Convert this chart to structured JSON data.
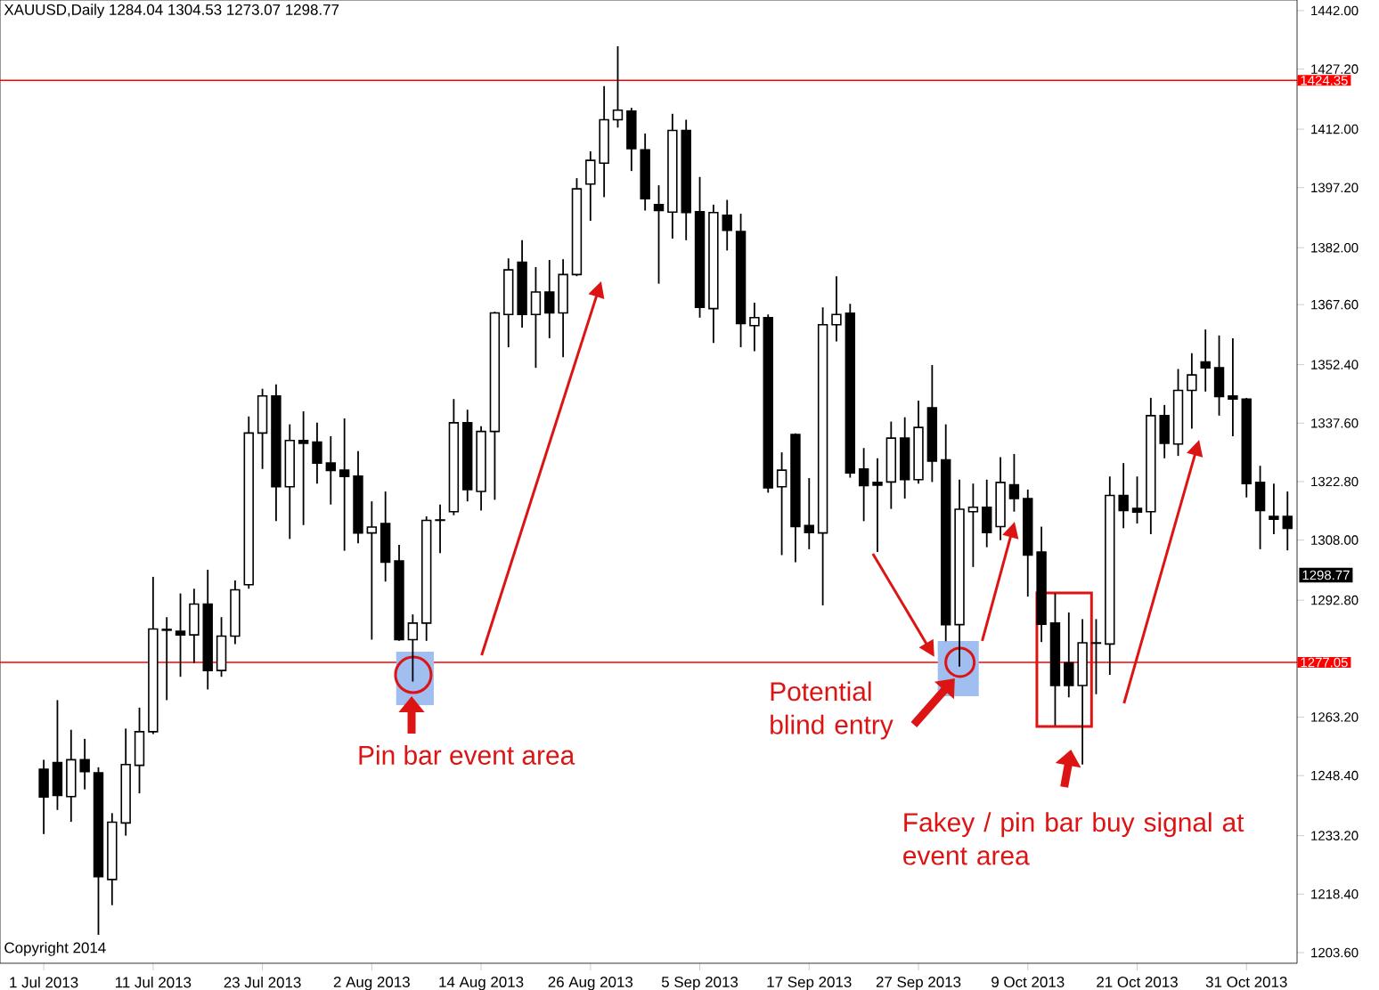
{
  "chart_data": {
    "type": "candlestick",
    "title": "XAUUSD,Daily  1284.04 1304.53 1273.07 1298.77",
    "categories": [
      "1 Jul 2013",
      null,
      null,
      null,
      null,
      null,
      null,
      null,
      "11 Jul 2013",
      null,
      null,
      null,
      null,
      null,
      null,
      null,
      "23 Jul 2013",
      null,
      null,
      null,
      null,
      null,
      null,
      null,
      "2 Aug 2013",
      null,
      null,
      null,
      null,
      null,
      null,
      null,
      "14 Aug 2013",
      null,
      null,
      null,
      null,
      null,
      null,
      null,
      "26 Aug 2013",
      null,
      null,
      null,
      null,
      null,
      null,
      null,
      "5 Sep 2013",
      null,
      null,
      null,
      null,
      null,
      null,
      null,
      "17 Sep 2013",
      null,
      null,
      null,
      null,
      null,
      null,
      null,
      "27 Sep 2013",
      null,
      null,
      null,
      null,
      null,
      null,
      null,
      "9 Oct 2013",
      null,
      null,
      null,
      null,
      null,
      null,
      null,
      "21 Oct 2013",
      null,
      null,
      null,
      null,
      null,
      null,
      null,
      "31 Oct 2013",
      null,
      null,
      null
    ],
    "ohlc": [
      [
        1250,
        1252.4,
        1233.6,
        1243
      ],
      [
        1251.7,
        1267.5,
        1239.7,
        1243.4
      ],
      [
        1243.1,
        1260,
        1236.7,
        1252.4
      ],
      [
        1252.4,
        1257.7,
        1244.9,
        1249.4
      ],
      [
        1249.1,
        1250.5,
        1208.1,
        1222.8
      ],
      [
        1222.1,
        1238.9,
        1215.6,
        1236.6
      ],
      [
        1236.4,
        1260.3,
        1233.2,
        1251.2
      ],
      [
        1251,
        1265.6,
        1243.9,
        1259.5
      ],
      [
        1259.5,
        1298.7,
        1258.9,
        1285.5
      ],
      [
        1285.2,
        1288.5,
        1267.5,
        1285.4
      ],
      [
        1284.9,
        1294.5,
        1273.4,
        1284
      ],
      [
        1284,
        1295.7,
        1276.9,
        1291.8
      ],
      [
        1291.8,
        1300.5,
        1270.2,
        1275
      ],
      [
        1275,
        1288.5,
        1273.4,
        1283.7
      ],
      [
        1283.7,
        1297.8,
        1281.7,
        1295.4
      ],
      [
        1296.7,
        1339.3,
        1295.7,
        1335.1
      ],
      [
        1335.1,
        1346.3,
        1326,
        1344.5
      ],
      [
        1344.5,
        1347.4,
        1312.8,
        1321.5
      ],
      [
        1321.5,
        1337.3,
        1308.3,
        1333.2
      ],
      [
        1333.2,
        1340.6,
        1311.8,
        1332.5
      ],
      [
        1332.8,
        1337.7,
        1322.3,
        1327.5
      ],
      [
        1327.5,
        1334.3,
        1317,
        1325.6
      ],
      [
        1325.7,
        1338.8,
        1305.3,
        1324.1
      ],
      [
        1324.2,
        1330.5,
        1307.2,
        1309.8
      ],
      [
        1309.8,
        1317.8,
        1282.8,
        1311.3
      ],
      [
        1312.2,
        1320.3,
        1297.5,
        1302.4
      ],
      [
        1302.7,
        1306.8,
        1282.5,
        1282.8
      ],
      [
        1282.8,
        1289.2,
        1272.2,
        1287
      ],
      [
        1287,
        1314,
        1282.5,
        1313
      ],
      [
        1313,
        1317,
        1304.7,
        1313.1
      ],
      [
        1315.2,
        1343.7,
        1314.3,
        1337.7
      ],
      [
        1337.7,
        1341,
        1317.8,
        1320.8
      ],
      [
        1320.3,
        1336.8,
        1315.5,
        1335.5
      ],
      [
        1335.5,
        1365.8,
        1318.2,
        1365.5
      ],
      [
        1365.1,
        1379.3,
        1356.8,
        1376.4
      ],
      [
        1378.3,
        1383.9,
        1361.8,
        1365.1
      ],
      [
        1365.1,
        1377.1,
        1351.6,
        1370.8
      ],
      [
        1370.8,
        1378.9,
        1359.1,
        1365.5
      ],
      [
        1365.5,
        1379.1,
        1354.3,
        1375.2
      ],
      [
        1375.2,
        1399.6,
        1374.8,
        1396.9
      ],
      [
        1398.1,
        1406.4,
        1388.8,
        1404.1
      ],
      [
        1403.4,
        1422.9,
        1394.8,
        1414.4
      ],
      [
        1414.4,
        1433,
        1412.4,
        1416.8
      ],
      [
        1416.6,
        1417.4,
        1401.4,
        1407.1
      ],
      [
        1406.8,
        1410.9,
        1391.4,
        1394.4
      ],
      [
        1392.9,
        1397.8,
        1372.9,
        1391.4
      ],
      [
        1391,
        1415.9,
        1384.3,
        1411.7
      ],
      [
        1411.7,
        1414.4,
        1383.9,
        1390.9
      ],
      [
        1391.1,
        1399.9,
        1364.3,
        1366.9
      ],
      [
        1366.6,
        1392.9,
        1357.9,
        1390.9
      ],
      [
        1390.2,
        1394.1,
        1381.3,
        1386.4
      ],
      [
        1386.1,
        1390.6,
        1356.8,
        1362.8
      ],
      [
        1362.3,
        1368.1,
        1355.8,
        1364.3
      ],
      [
        1364.3,
        1365.1,
        1320,
        1321.2
      ],
      [
        1321.5,
        1330.2,
        1304.2,
        1325.7
      ],
      [
        1334.7,
        1335,
        1302.4,
        1311.4
      ],
      [
        1311.7,
        1323.7,
        1305.7,
        1309.9
      ],
      [
        1309.8,
        1366.9,
        1291.5,
        1362.5
      ],
      [
        1362.5,
        1374.8,
        1358.3,
        1365.1
      ],
      [
        1365.4,
        1367.8,
        1323.8,
        1325
      ],
      [
        1326,
        1331.3,
        1312.8,
        1321.8
      ],
      [
        1322.6,
        1328.7,
        1305,
        1321.9
      ],
      [
        1322.7,
        1338,
        1315.9,
        1333.8
      ],
      [
        1333.8,
        1339.1,
        1318.5,
        1323.3
      ],
      [
        1323.3,
        1343.3,
        1322.3,
        1336.5
      ],
      [
        1341.5,
        1352.3,
        1322.7,
        1328
      ],
      [
        1328.3,
        1337.3,
        1282.4,
        1286.6
      ],
      [
        1286.6,
        1323.3,
        1276,
        1315.8
      ],
      [
        1315.2,
        1322.3,
        1301.2,
        1316.3
      ],
      [
        1316.3,
        1323.3,
        1306.2,
        1309.9
      ],
      [
        1311.4,
        1329,
        1308,
        1322.6
      ],
      [
        1322,
        1329.8,
        1315.2,
        1318.5
      ],
      [
        1318.5,
        1320.8,
        1293.7,
        1304.2
      ],
      [
        1305,
        1311.4,
        1282.2,
        1286.7
      ],
      [
        1287,
        1294.5,
        1261.1,
        1271.2
      ],
      [
        1276.9,
        1289.7,
        1268.2,
        1271.2
      ],
      [
        1271.2,
        1288,
        1251.2,
        1282
      ],
      [
        1281.9,
        1288,
        1269,
        1282
      ],
      [
        1281.7,
        1324.1,
        1273.9,
        1319.3
      ],
      [
        1319.3,
        1327.5,
        1311,
        1315.5
      ],
      [
        1316,
        1324.1,
        1312.2,
        1315.1
      ],
      [
        1315.2,
        1344,
        1309.5,
        1339.5
      ],
      [
        1339.5,
        1342.2,
        1328.7,
        1332.5
      ],
      [
        1332.3,
        1351.3,
        1329.3,
        1345.9
      ],
      [
        1345.9,
        1355.3,
        1336.2,
        1349.8
      ],
      [
        1353.1,
        1361.3,
        1345.6,
        1351.6
      ],
      [
        1351.6,
        1359.8,
        1339.5,
        1344.3
      ],
      [
        1344.5,
        1359.1,
        1334.3,
        1343.7
      ],
      [
        1343.7,
        1344,
        1318.8,
        1322.3
      ],
      [
        1322.6,
        1326.8,
        1305.7,
        1315.5
      ],
      [
        1314,
        1322.3,
        1309.5,
        1313.3
      ],
      [
        1314,
        1320.3,
        1305.4,
        1311
      ]
    ],
    "ylim": [
      1200.9,
      1444.7
    ],
    "yticks": [
      {
        "value": 1442,
        "label": "1442.00"
      },
      {
        "value": 1427.2,
        "label": "1427.20"
      },
      {
        "value": 1412,
        "label": "1412.00"
      },
      {
        "value": 1397.2,
        "label": "1397.20"
      },
      {
        "value": 1382,
        "label": "1382.00"
      },
      {
        "value": 1367.6,
        "label": "1367.60"
      },
      {
        "value": 1352.4,
        "label": "1352.40"
      },
      {
        "value": 1337.6,
        "label": "1337.60"
      },
      {
        "value": 1322.8,
        "label": "1322.80"
      },
      {
        "value": 1308,
        "label": "1308.00"
      },
      {
        "value": 1292.8,
        "label": "1292.80"
      },
      {
        "value": 1263.2,
        "label": "1263.20"
      },
      {
        "value": 1248.4,
        "label": "1248.40"
      },
      {
        "value": 1233.2,
        "label": "1233.20"
      },
      {
        "value": 1218.4,
        "label": "1218.40"
      },
      {
        "value": 1203.6,
        "label": "1203.60"
      }
    ],
    "ref_lines": [
      {
        "axis": "y",
        "value": 1424.35,
        "label": "1424.35",
        "color": "#ff0000"
      },
      {
        "axis": "y",
        "value": 1277.05,
        "label": "1277.05",
        "color": "#ff0000"
      }
    ],
    "annotations": [
      "Copyright 2014",
      "Pin bar event area",
      "Potential blind entry",
      "Fakey / pin bar buy signal at event area",
      "1298.77"
    ]
  }
}
